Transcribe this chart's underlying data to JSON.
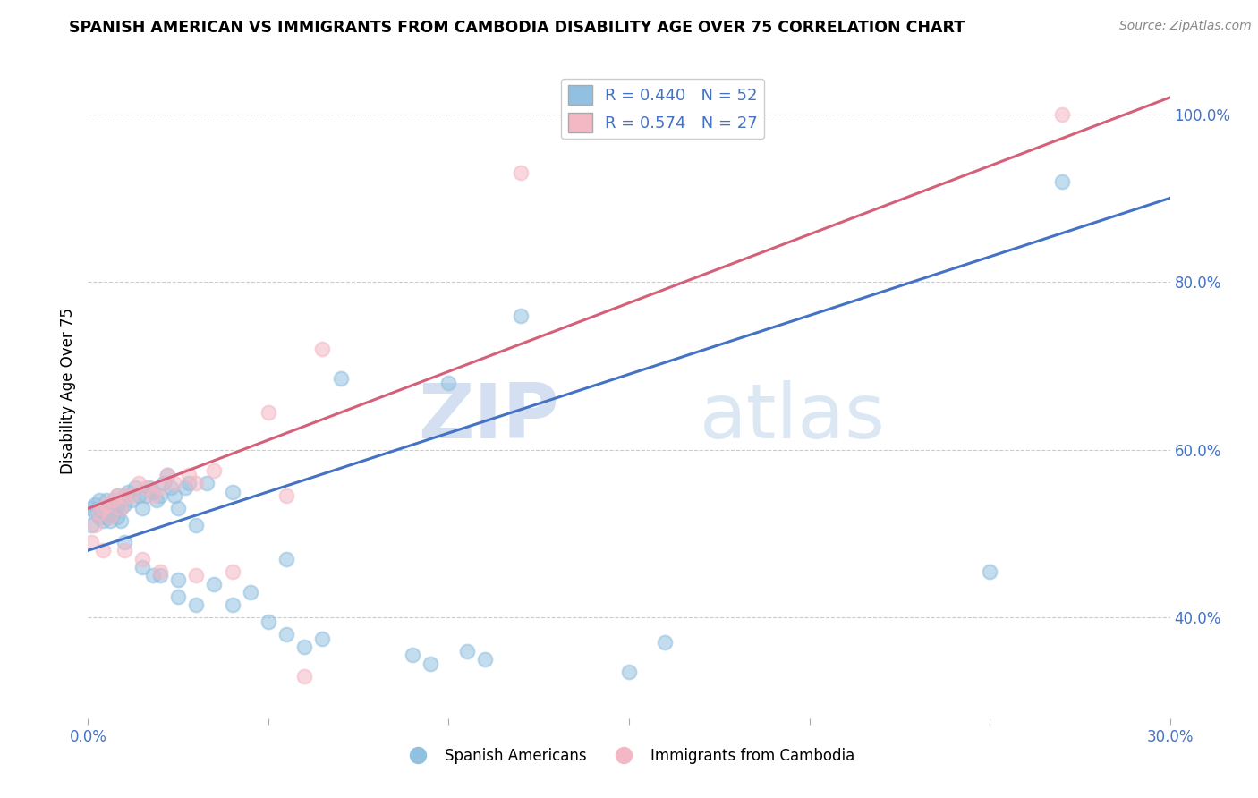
{
  "title": "SPANISH AMERICAN VS IMMIGRANTS FROM CAMBODIA DISABILITY AGE OVER 75 CORRELATION CHART",
  "source": "Source: ZipAtlas.com",
  "ylabel_label": "Disability Age Over 75",
  "legend_label1": "Spanish Americans",
  "legend_label2": "Immigrants from Cambodia",
  "R1": 0.44,
  "N1": 52,
  "R2": 0.574,
  "N2": 27,
  "xlim": [
    0.0,
    0.3
  ],
  "ylim": [
    0.28,
    1.06
  ],
  "xticks": [
    0.0,
    0.05,
    0.1,
    0.15,
    0.2,
    0.25,
    0.3
  ],
  "yticks": [
    0.4,
    0.6,
    0.8,
    1.0
  ],
  "ytick_labels": [
    "40.0%",
    "60.0%",
    "80.0%",
    "100.0%"
  ],
  "xtick_labels": [
    "0.0%",
    "",
    "",
    "",
    "",
    "",
    "30.0%"
  ],
  "color_blue": "#92c0e0",
  "color_pink": "#f4b8c4",
  "line_color_blue": "#4472c4",
  "line_color_pink": "#d4607a",
  "watermark_zip": "ZIP",
  "watermark_atlas": "atlas",
  "blue_x": [
    0.001,
    0.001,
    0.002,
    0.002,
    0.003,
    0.003,
    0.004,
    0.004,
    0.005,
    0.005,
    0.006,
    0.006,
    0.007,
    0.007,
    0.008,
    0.008,
    0.008,
    0.009,
    0.009,
    0.01,
    0.01,
    0.011,
    0.012,
    0.013,
    0.014,
    0.015,
    0.016,
    0.017,
    0.018,
    0.019,
    0.02,
    0.021,
    0.022,
    0.023,
    0.024,
    0.025,
    0.027,
    0.028,
    0.03,
    0.033,
    0.035,
    0.04,
    0.045,
    0.055,
    0.06,
    0.07,
    0.09,
    0.1,
    0.12,
    0.16,
    0.25,
    0.27
  ],
  "blue_y": [
    0.53,
    0.51,
    0.525,
    0.535,
    0.52,
    0.54,
    0.515,
    0.53,
    0.54,
    0.52,
    0.535,
    0.515,
    0.54,
    0.525,
    0.535,
    0.52,
    0.545,
    0.53,
    0.515,
    0.545,
    0.535,
    0.55,
    0.54,
    0.555,
    0.545,
    0.53,
    0.545,
    0.555,
    0.55,
    0.54,
    0.545,
    0.56,
    0.57,
    0.555,
    0.545,
    0.53,
    0.555,
    0.56,
    0.51,
    0.56,
    0.44,
    0.55,
    0.43,
    0.47,
    0.365,
    0.685,
    0.355,
    0.68,
    0.76,
    0.37,
    0.455,
    0.92
  ],
  "blue_x_low": [
    0.01,
    0.015,
    0.018,
    0.02,
    0.025,
    0.025,
    0.03,
    0.04,
    0.05,
    0.055,
    0.065,
    0.095,
    0.105,
    0.11,
    0.15
  ],
  "blue_y_low": [
    0.49,
    0.46,
    0.45,
    0.45,
    0.445,
    0.425,
    0.415,
    0.415,
    0.395,
    0.38,
    0.375,
    0.345,
    0.36,
    0.35,
    0.335
  ],
  "pink_x": [
    0.001,
    0.002,
    0.003,
    0.004,
    0.005,
    0.006,
    0.007,
    0.008,
    0.009,
    0.01,
    0.012,
    0.014,
    0.016,
    0.018,
    0.02,
    0.022,
    0.024,
    0.028,
    0.03,
    0.035,
    0.05,
    0.055,
    0.065,
    0.12,
    0.27
  ],
  "pink_y": [
    0.49,
    0.51,
    0.525,
    0.53,
    0.535,
    0.52,
    0.54,
    0.545,
    0.53,
    0.545,
    0.545,
    0.56,
    0.555,
    0.545,
    0.555,
    0.57,
    0.56,
    0.57,
    0.56,
    0.575,
    0.645,
    0.545,
    0.72,
    0.93,
    1.0
  ],
  "pink_x_low": [
    0.004,
    0.01,
    0.015,
    0.02,
    0.03,
    0.04,
    0.06
  ],
  "pink_y_low": [
    0.48,
    0.48,
    0.47,
    0.455,
    0.45,
    0.455,
    0.33
  ],
  "blue_line_x0": 0.0,
  "blue_line_y0": 0.48,
  "blue_line_x1": 0.3,
  "blue_line_y1": 0.9,
  "pink_line_x0": 0.0,
  "pink_line_y0": 0.53,
  "pink_line_x1": 0.3,
  "pink_line_y1": 1.02
}
